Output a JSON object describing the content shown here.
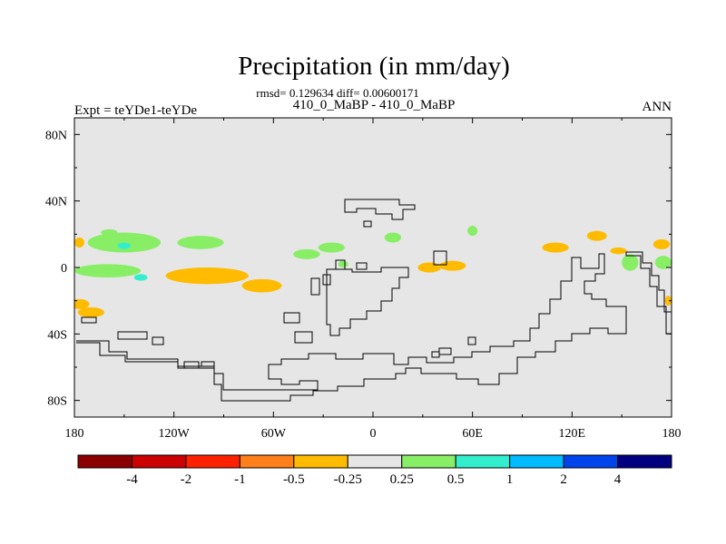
{
  "chart_data": {
    "type": "heatmap",
    "title": "Precipitation (in mm/day)",
    "stats_line": "rmsd= 0.129634 diff= 0.00600171",
    "subtitle": "410_0_MaBP - 410_0_MaBP",
    "left_label": "Expt = teYDe1-teYDe",
    "right_label": "ANN",
    "x_ticks": [
      {
        "lon": -180,
        "label": "180"
      },
      {
        "lon": -120,
        "label": "120W"
      },
      {
        "lon": -60,
        "label": "60W"
      },
      {
        "lon": 0,
        "label": "0"
      },
      {
        "lon": 60,
        "label": "60E"
      },
      {
        "lon": 120,
        "label": "120E"
      },
      {
        "lon": 180,
        "label": "180"
      }
    ],
    "y_ticks": [
      {
        "lat": 80,
        "label": "80N"
      },
      {
        "lat": 40,
        "label": "40N"
      },
      {
        "lat": 0,
        "label": "0"
      },
      {
        "lat": -40,
        "label": "40S"
      },
      {
        "lat": -80,
        "label": "80S"
      }
    ],
    "lon_range": [
      -180,
      180
    ],
    "lat_range": [
      -90,
      90
    ],
    "colorbar": {
      "colors": [
        "#8b0000",
        "#cc0000",
        "#ff2200",
        "#ff7f1a",
        "#ffbb00",
        "#e6e6e6",
        "#88ee66",
        "#33eecc",
        "#00bbff",
        "#0044ee",
        "#000080"
      ],
      "labels": [
        "-4",
        "-2",
        "-1",
        "-0.5",
        "-0.25",
        "0.25",
        "0.5",
        "1",
        "2",
        "4"
      ]
    },
    "background_color": "#e6e6e6",
    "anomaly_regions": [
      {
        "category": "-0.5 to -0.25",
        "lon": -100,
        "lat": -5,
        "rx": 25,
        "ry": 5
      },
      {
        "category": "-0.5 to -0.25",
        "lon": -67,
        "lat": -11,
        "rx": 12,
        "ry": 4
      },
      {
        "category": "-0.5 to -0.25",
        "lon": -177,
        "lat": -22,
        "rx": 6,
        "ry": 3
      },
      {
        "category": "-0.5 to -0.25",
        "lon": -170,
        "lat": -27,
        "rx": 8,
        "ry": 3
      },
      {
        "category": "-0.5 to -0.25",
        "lon": -177,
        "lat": 15,
        "rx": 3,
        "ry": 3
      },
      {
        "category": "-0.5 to -0.25",
        "lon": 34,
        "lat": 0,
        "rx": 7,
        "ry": 3
      },
      {
        "category": "-0.5 to -0.25",
        "lon": 48,
        "lat": 1,
        "rx": 8,
        "ry": 3
      },
      {
        "category": "-0.5 to -0.25",
        "lon": 110,
        "lat": 12,
        "rx": 8,
        "ry": 3
      },
      {
        "category": "-0.5 to -0.25",
        "lon": 135,
        "lat": 19,
        "rx": 6,
        "ry": 3
      },
      {
        "category": "-0.5 to -0.25",
        "lon": 148,
        "lat": 10,
        "rx": 5,
        "ry": 2
      },
      {
        "category": "-0.5 to -0.25",
        "lon": 174,
        "lat": 14,
        "rx": 5,
        "ry": 3
      },
      {
        "category": "-0.5 to -0.25",
        "lon": 178,
        "lat": -20,
        "rx": 2,
        "ry": 3
      },
      {
        "category": "0.25 to 0.5",
        "lon": -150,
        "lat": 15,
        "rx": 22,
        "ry": 6
      },
      {
        "category": "0.25 to 0.5",
        "lon": -104,
        "lat": 15,
        "rx": 14,
        "ry": 4
      },
      {
        "category": "0.25 to 0.5",
        "lon": -160,
        "lat": -2,
        "rx": 20,
        "ry": 4
      },
      {
        "category": "0.25 to 0.5",
        "lon": -159,
        "lat": 21,
        "rx": 5,
        "ry": 2
      },
      {
        "category": "0.25 to 0.5",
        "lon": -40,
        "lat": 8,
        "rx": 8,
        "ry": 3
      },
      {
        "category": "0.25 to 0.5",
        "lon": -25,
        "lat": 12,
        "rx": 8,
        "ry": 3
      },
      {
        "category": "0.25 to 0.5",
        "lon": 12,
        "lat": 18,
        "rx": 5,
        "ry": 3
      },
      {
        "category": "0.25 to 0.5",
        "lon": 60,
        "lat": 22,
        "rx": 3,
        "ry": 3
      },
      {
        "category": "0.25 to 0.5",
        "lon": 155,
        "lat": 3,
        "rx": 5,
        "ry": 5
      },
      {
        "category": "0.25 to 0.5",
        "lon": 175,
        "lat": 3,
        "rx": 5,
        "ry": 4
      },
      {
        "category": "0.25 to 0.5",
        "lon": -18,
        "lat": 2,
        "rx": 3,
        "ry": 2
      },
      {
        "category": "0.5 to 1",
        "lon": -150,
        "lat": 13,
        "rx": 4,
        "ry": 2
      },
      {
        "category": "0.5 to 1",
        "lon": -140,
        "lat": -6,
        "rx": 4,
        "ry": 2
      }
    ]
  }
}
